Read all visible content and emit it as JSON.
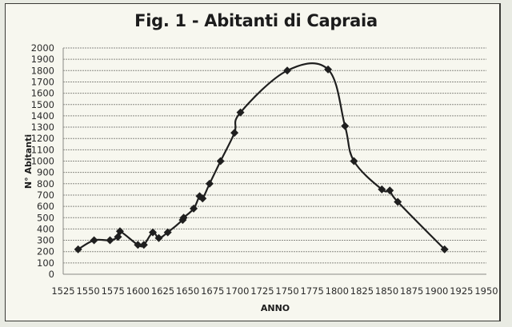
{
  "chart_data": {
    "type": "line",
    "title": "Fig. 1 - Abitanti di Capraia",
    "xlabel": "ANNO",
    "ylabel": "N° Abitanti",
    "xlim": [
      1525,
      1950
    ],
    "ylim": [
      0,
      2000
    ],
    "x_ticks": [
      1525,
      1550,
      1575,
      1600,
      1625,
      1650,
      1675,
      1700,
      1725,
      1750,
      1775,
      1800,
      1825,
      1850,
      1875,
      1900,
      1925,
      1950
    ],
    "y_ticks": [
      0,
      100,
      200,
      300,
      400,
      500,
      600,
      700,
      800,
      900,
      1000,
      1100,
      1200,
      1300,
      1400,
      1500,
      1600,
      1700,
      1800,
      1900,
      2000
    ],
    "grid": "horizontal",
    "legend": "none",
    "marker": "diamond",
    "smoothed": true,
    "series": [
      {
        "name": "Abitanti",
        "x": [
          1540,
          1556,
          1572,
          1580,
          1582,
          1600,
          1606,
          1615,
          1621,
          1630,
          1645,
          1646,
          1656,
          1662,
          1665,
          1672,
          1683,
          1697,
          1703,
          1750,
          1791,
          1808,
          1817,
          1845,
          1853,
          1861,
          1908
        ],
        "values": [
          220,
          300,
          300,
          330,
          380,
          260,
          260,
          370,
          320,
          370,
          480,
          500,
          580,
          690,
          670,
          800,
          1000,
          1250,
          1430,
          1800,
          1810,
          1310,
          1000,
          750,
          740,
          640,
          220
        ]
      }
    ]
  },
  "colors": {
    "line": "#1f1f1f",
    "grid": "#8a8a84",
    "background": "#f7f7ef"
  }
}
